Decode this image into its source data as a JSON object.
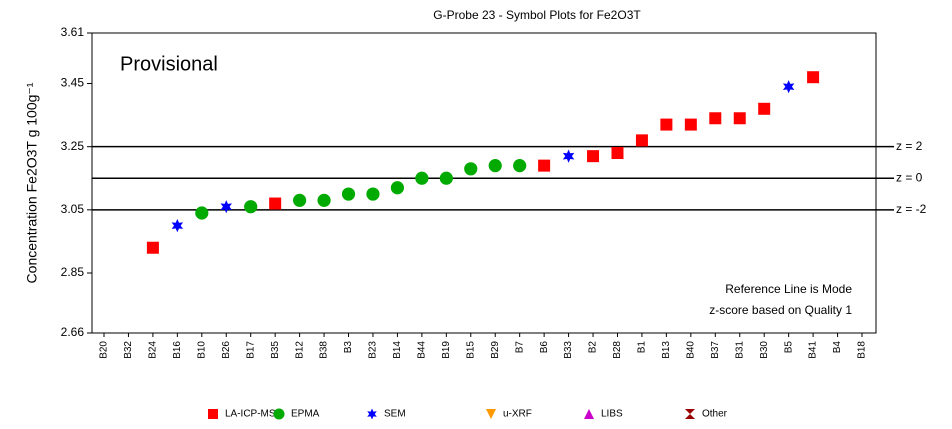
{
  "chart_data": {
    "type": "scatter",
    "title": "G-Probe 23 - Symbol Plots for Fe2O3T",
    "y_label": "Concentration Fe2O3T g 100g⁻¹",
    "annotations": [
      "Provisional",
      "Reference Line is Mode",
      "z-score based on Quality 1"
    ],
    "categories": [
      "B20",
      "B32",
      "B24",
      "B16",
      "B10",
      "B26",
      "B17",
      "B35",
      "B12",
      "B38",
      "B3",
      "B23",
      "B14",
      "B44",
      "B19",
      "B15",
      "B29",
      "B7",
      "B6",
      "B33",
      "B2",
      "B28",
      "B1",
      "B13",
      "B40",
      "B37",
      "B31",
      "B30",
      "B5",
      "B41",
      "B4",
      "B18"
    ],
    "ylim": [
      2.66,
      3.61
    ],
    "yticks": [
      2.66,
      2.85,
      3.05,
      3.25,
      3.45,
      3.61
    ],
    "reference_lines": [
      {
        "value": 3.25,
        "label": "z = 2"
      },
      {
        "value": 3.15,
        "label": "z = 0"
      },
      {
        "value": 3.05,
        "label": "z = -2"
      }
    ],
    "series": [
      {
        "name": "LA-ICP-MS",
        "color": "#ff0000",
        "marker": "square",
        "values": [
          null,
          null,
          2.93,
          null,
          null,
          null,
          null,
          3.07,
          null,
          null,
          null,
          null,
          null,
          null,
          null,
          null,
          null,
          null,
          3.19,
          null,
          3.22,
          3.23,
          3.27,
          3.32,
          3.32,
          3.34,
          3.34,
          3.37,
          null,
          3.47,
          null,
          null
        ]
      },
      {
        "name": "EPMA",
        "color": "#00aa00",
        "marker": "circle",
        "values": [
          null,
          null,
          null,
          null,
          3.04,
          null,
          3.06,
          null,
          3.08,
          3.08,
          3.1,
          3.1,
          3.12,
          3.15,
          3.15,
          3.18,
          3.19,
          3.19,
          null,
          null,
          null,
          null,
          null,
          null,
          null,
          null,
          null,
          null,
          null,
          null,
          null,
          null
        ]
      },
      {
        "name": "SEM",
        "color": "#0000ff",
        "marker": "star",
        "values": [
          null,
          null,
          null,
          3.0,
          null,
          3.06,
          null,
          null,
          null,
          null,
          null,
          null,
          null,
          null,
          null,
          null,
          null,
          null,
          null,
          3.22,
          null,
          null,
          null,
          null,
          null,
          null,
          null,
          null,
          3.44,
          null,
          null,
          null
        ]
      },
      {
        "name": "u-XRF",
        "color": "#ff9900",
        "marker": "triangle-down",
        "values": [
          null,
          null,
          null,
          null,
          null,
          null,
          null,
          null,
          null,
          null,
          null,
          null,
          null,
          null,
          null,
          null,
          null,
          null,
          null,
          null,
          null,
          null,
          null,
          null,
          null,
          null,
          null,
          null,
          null,
          null,
          null,
          null
        ]
      },
      {
        "name": "LIBS",
        "color": "#cc00cc",
        "marker": "triangle-up",
        "values": [
          null,
          null,
          null,
          null,
          null,
          null,
          null,
          null,
          null,
          null,
          null,
          null,
          null,
          null,
          null,
          null,
          null,
          null,
          null,
          null,
          null,
          null,
          null,
          null,
          null,
          null,
          null,
          null,
          null,
          null,
          null,
          null
        ]
      },
      {
        "name": "Other",
        "color": "#990000",
        "marker": "hourglass",
        "values": [
          null,
          null,
          null,
          null,
          null,
          null,
          null,
          null,
          null,
          null,
          null,
          null,
          null,
          null,
          null,
          null,
          null,
          null,
          null,
          null,
          null,
          null,
          null,
          null,
          null,
          null,
          null,
          null,
          null,
          null,
          null,
          null
        ]
      }
    ]
  }
}
